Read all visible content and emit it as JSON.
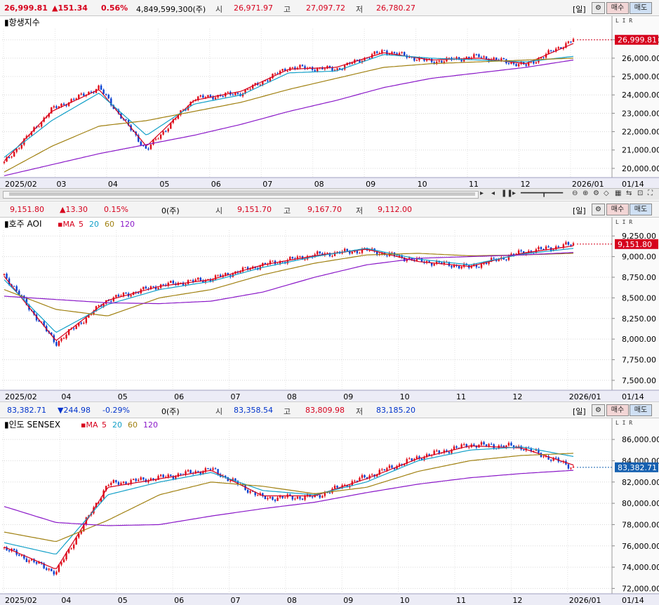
{
  "panels": [
    {
      "id": "hsi",
      "info": {
        "price": "26,999.81",
        "change": "▲151.34",
        "change_pct": "0.56%",
        "volume": "4,849,599,300(주)",
        "open_label": "시",
        "open": "26,971.97",
        "high_label": "고",
        "high": "27,097.72",
        "low_label": "저",
        "low": "26,780.27",
        "direction": "up"
      },
      "buttons": {
        "period": "[일]",
        "buy": "매수",
        "sell": "매도"
      },
      "title": "항생지수",
      "ma_legend": null,
      "y_ticks": [
        "27,000.00",
        "26,000.00",
        "25,000.00",
        "24,000.00",
        "23,000.00",
        "22,000.00",
        "21,000.00",
        "20,000.00"
      ],
      "x_ticks": [
        "2025/02",
        "03",
        "04",
        "05",
        "06",
        "07",
        "08",
        "09",
        "10",
        "11",
        "12",
        "2026/01"
      ],
      "x_end_label": "01/14",
      "last_price_tag": "26,999.81",
      "tag_color": "#d6001c",
      "lir": "L I R"
    },
    {
      "id": "aoi",
      "info": {
        "price": "9,151.80",
        "change": "▲13.30",
        "change_pct": "0.15%",
        "volume": "0(주)",
        "open_label": "시",
        "open": "9,151.70",
        "high_label": "고",
        "high": "9,167.70",
        "low_label": "저",
        "low": "9,112.00",
        "direction": "up"
      },
      "buttons": {
        "period": "[일]",
        "buy": "매수",
        "sell": "매도"
      },
      "title": "호주 AOI",
      "ma_legend": {
        "prefix": "MA",
        "items": [
          "5",
          "20",
          "60",
          "120"
        ]
      },
      "y_ticks": [
        "9,250.00",
        "9,000.00",
        "8,750.00",
        "8,500.00",
        "8,250.00",
        "8,000.00",
        "7,750.00",
        "7,500.00"
      ],
      "x_ticks": [
        "2025/02",
        "04",
        "05",
        "06",
        "07",
        "08",
        "09",
        "10",
        "11",
        "12",
        "2026/01"
      ],
      "x_end_label": "01/14",
      "last_price_tag": "9,151.80",
      "tag_color": "#d6001c",
      "lir": "L I R"
    },
    {
      "id": "sensex",
      "info": {
        "price": "83,382.71",
        "change": "▼244.98",
        "change_pct": "-0.29%",
        "volume": "0(주)",
        "open_label": "시",
        "open": "83,358.54",
        "high_label": "고",
        "high": "83,809.98",
        "low_label": "저",
        "low": "83,185.20",
        "direction": "down"
      },
      "buttons": {
        "period": "[일]",
        "buy": "매수",
        "sell": "매도"
      },
      "title": "인도 SENSEX",
      "ma_legend": {
        "prefix": "MA",
        "items": [
          "5",
          "20",
          "60",
          "120"
        ]
      },
      "y_ticks": [
        "86,000.00",
        "84,000.00",
        "82,000.00",
        "80,000.00",
        "78,000.00",
        "76,000.00",
        "74,000.00",
        "72,000.00"
      ],
      "x_ticks": [
        "2025/02",
        "04",
        "05",
        "06",
        "07",
        "08",
        "09",
        "10",
        "11",
        "12",
        "2026/01"
      ],
      "x_end_label": "01/14",
      "last_price_tag": "83,382.71",
      "tag_color": "#1560b0",
      "lir": "L I R"
    }
  ],
  "ma_colors": {
    "ma5": "#d6001c",
    "ma20": "#12a0c8",
    "ma60": "#a08010",
    "ma120": "#8a18c8"
  },
  "candle_colors": {
    "up": "#e0101c",
    "down": "#0a40d0"
  },
  "chart_data": [
    {
      "type": "line",
      "title": "항생지수",
      "series_kind": "daily candlestick with moving averages",
      "x": [
        "2025/02",
        "03",
        "04",
        "05",
        "06",
        "07",
        "08",
        "09",
        "10",
        "11",
        "12",
        "2026/01",
        "01/14"
      ],
      "ylim": [
        19500,
        27600
      ],
      "series": [
        {
          "name": "close",
          "values": [
            20300,
            23200,
            24400,
            21000,
            23800,
            24100,
            25500,
            25400,
            26400,
            25800,
            26100,
            25600,
            27000
          ]
        },
        {
          "name": "5",
          "values": [
            20400,
            23100,
            24300,
            21200,
            23700,
            24200,
            25400,
            25500,
            26300,
            25900,
            26000,
            25700,
            26800
          ]
        },
        {
          "name": "20",
          "values": [
            20600,
            22600,
            24100,
            21800,
            23500,
            24000,
            25200,
            25300,
            26200,
            26000,
            25900,
            25800,
            26100
          ]
        },
        {
          "name": "60",
          "values": [
            19800,
            21200,
            22300,
            22600,
            23100,
            23600,
            24300,
            24900,
            25500,
            25700,
            25800,
            25900,
            26000
          ]
        },
        {
          "name": "120",
          "values": [
            19600,
            20200,
            20800,
            21300,
            21800,
            22400,
            23100,
            23700,
            24400,
            24900,
            25200,
            25500,
            25900
          ]
        }
      ]
    },
    {
      "type": "line",
      "title": "호주 AOI",
      "series_kind": "daily candlestick with moving averages",
      "x": [
        "2025/02",
        "04",
        "05",
        "06",
        "07",
        "08",
        "09",
        "10",
        "11",
        "12",
        "2026/01",
        "01/14"
      ],
      "ylim": [
        7380,
        9320
      ],
      "series": [
        {
          "name": "close",
          "values": [
            8780,
            7950,
            8480,
            8650,
            8730,
            8900,
            9020,
            9080,
            8950,
            8870,
            9050,
            9150
          ]
        },
        {
          "name": "5",
          "values": [
            8760,
            7980,
            8470,
            8640,
            8720,
            8900,
            9010,
            9090,
            8940,
            8880,
            9040,
            9130
          ]
        },
        {
          "name": "20",
          "values": [
            8720,
            8080,
            8420,
            8600,
            8700,
            8870,
            9000,
            9100,
            8970,
            8900,
            9030,
            9100
          ]
        },
        {
          "name": "60",
          "values": [
            8600,
            8360,
            8280,
            8500,
            8600,
            8780,
            8920,
            9020,
            9040,
            9010,
            9020,
            9040
          ]
        },
        {
          "name": "120",
          "values": [
            8520,
            8480,
            8440,
            8430,
            8460,
            8570,
            8750,
            8900,
            8980,
            9000,
            9020,
            9050
          ]
        }
      ]
    },
    {
      "type": "line",
      "title": "인도 SENSEX",
      "series_kind": "daily candlestick with moving averages",
      "x": [
        "2025/02",
        "04",
        "05",
        "06",
        "07",
        "08",
        "09",
        "10",
        "11",
        "12",
        "2026/01",
        "01/14"
      ],
      "ylim": [
        71500,
        86800
      ],
      "series": [
        {
          "name": "close",
          "values": [
            75800,
            73500,
            81800,
            82400,
            83200,
            80500,
            80600,
            82500,
            84300,
            85500,
            85300,
            83380
          ]
        },
        {
          "name": "5",
          "values": [
            75900,
            73800,
            81500,
            82300,
            83100,
            80700,
            80700,
            82300,
            84200,
            85400,
            85200,
            83600
          ]
        },
        {
          "name": "20",
          "values": [
            76300,
            75200,
            80800,
            82000,
            82900,
            81200,
            80800,
            82000,
            84000,
            85000,
            85300,
            84400
          ]
        },
        {
          "name": "60",
          "values": [
            77300,
            76400,
            78400,
            80800,
            82000,
            81600,
            80900,
            81500,
            83000,
            84000,
            84500,
            84700
          ]
        },
        {
          "name": "120",
          "values": [
            79700,
            78200,
            77900,
            78000,
            78800,
            79500,
            80100,
            81000,
            81800,
            82400,
            82800,
            83100
          ]
        }
      ]
    }
  ]
}
